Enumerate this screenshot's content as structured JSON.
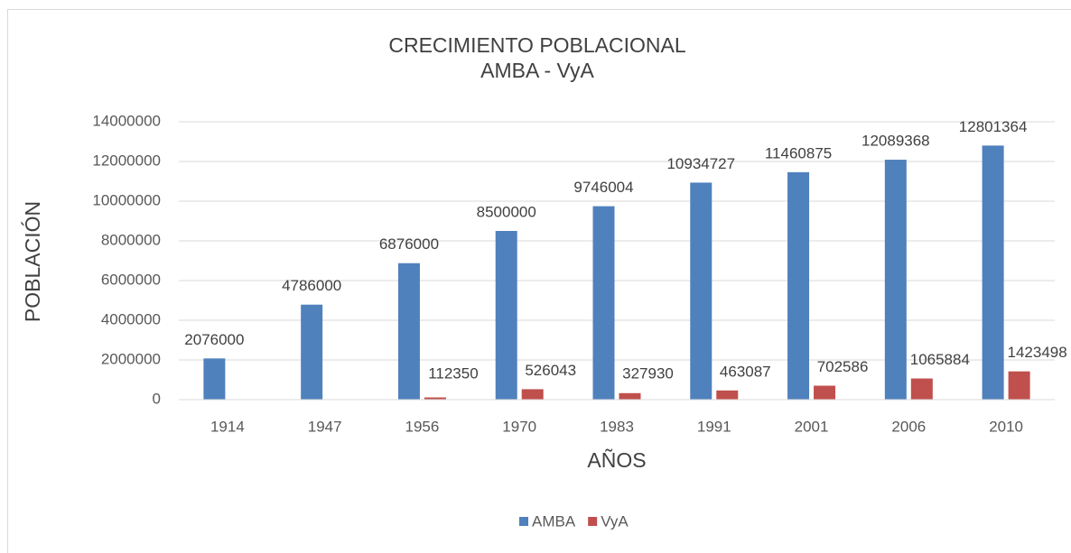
{
  "chart_data": {
    "type": "bar",
    "title": "CRECIMIENTO POBLACIONAL",
    "subtitle": "AMBA - VyA",
    "x_label": "AÑOS",
    "y_label": "POBLACIÓN",
    "categories": [
      "1914",
      "1947",
      "1956",
      "1970",
      "1983",
      "1991",
      "2001",
      "2006",
      "2010"
    ],
    "series": [
      {
        "name": "AMBA",
        "color": "#4f81bd",
        "values": [
          2076000,
          4786000,
          6876000,
          8500000,
          9746004,
          10934727,
          11460875,
          12089368,
          12801364
        ]
      },
      {
        "name": "VyA",
        "color": "#c0504d",
        "values": [
          null,
          null,
          112350,
          526043,
          327930,
          463087,
          702586,
          1065884,
          1423498
        ]
      }
    ],
    "ylim": [
      0,
      14000000
    ],
    "yticks": [
      0,
      2000000,
      4000000,
      6000000,
      8000000,
      10000000,
      12000000,
      14000000
    ],
    "grid": true,
    "legend": "bottom"
  }
}
